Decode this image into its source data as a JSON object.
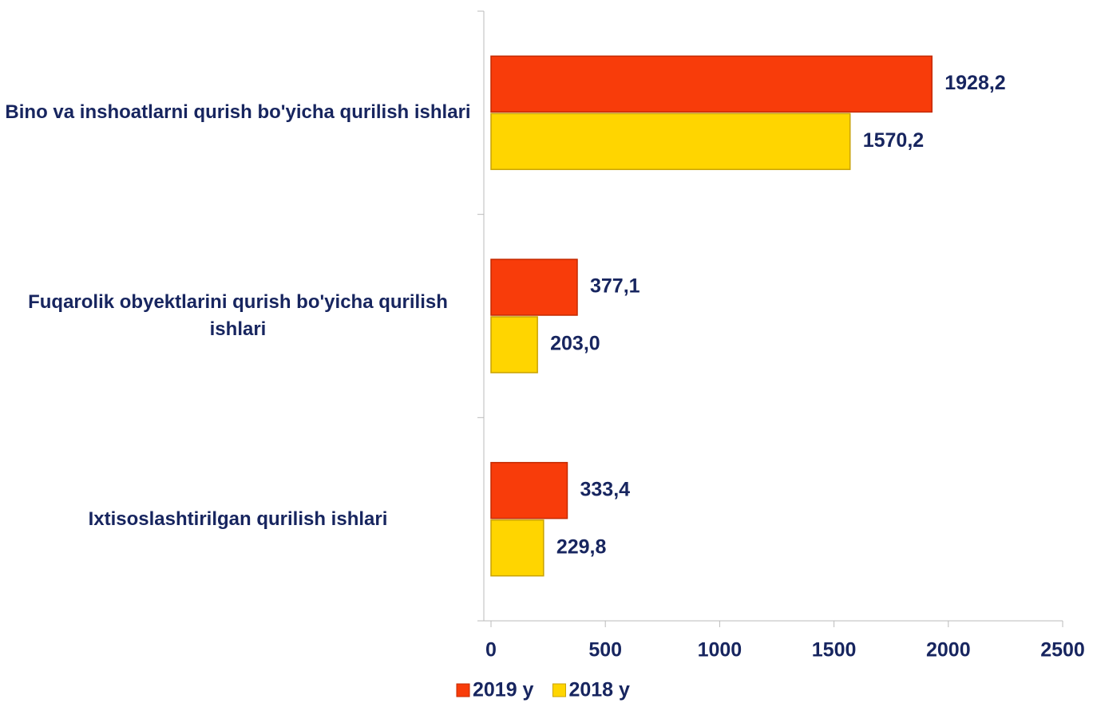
{
  "chart_data": {
    "type": "barh",
    "categories": [
      "Bino va inshoatlarni qurish bo'yicha qurilish ishlari",
      "Fuqarolik obyektlarini qurish bo'yicha qurilish ishlari",
      "Ixtisoslashtirilgan qurilish ishlari"
    ],
    "series": [
      {
        "name": "2019 y",
        "color": "#f83c0a",
        "values": [
          1928.2,
          377.1,
          333.4
        ],
        "value_labels": [
          "1928,2",
          "377,1",
          "333,4"
        ]
      },
      {
        "name": "2018 y",
        "color": "#ffd500",
        "values": [
          1570.2,
          203.0,
          229.8
        ],
        "value_labels": [
          "1570,2",
          "203,0",
          "229,8"
        ]
      }
    ],
    "xlim": [
      0,
      2500
    ],
    "xticks": [
      0,
      500,
      1000,
      1500,
      2000,
      2500
    ]
  }
}
